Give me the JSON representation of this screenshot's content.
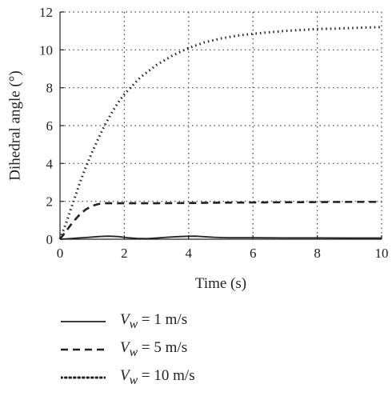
{
  "chart_data": {
    "type": "line",
    "xlabel": "Time (s)",
    "ylabel": "Dihedral angle (°)",
    "xlim": [
      0,
      10
    ],
    "ylim": [
      0,
      12
    ],
    "xticks": [
      0,
      2,
      4,
      6,
      8,
      10
    ],
    "yticks": [
      0,
      2,
      4,
      6,
      8,
      10,
      12
    ],
    "grid": true,
    "legend_position": "bottom",
    "series": [
      {
        "name": "V_w = 1 m/s",
        "label_var": "V",
        "label_sub": "w",
        "label_rest": " = 1 m/s",
        "style": "solid",
        "x": [
          0,
          0.3,
          0.6,
          0.9,
          1.2,
          1.5,
          1.8,
          2.1,
          2.4,
          2.7,
          3.0,
          3.3,
          3.6,
          3.9,
          4.2,
          4.5,
          4.8,
          5.2,
          6,
          7,
          8,
          9,
          10
        ],
        "y": [
          0,
          0.03,
          0.07,
          0.1,
          0.14,
          0.16,
          0.14,
          0.08,
          0.04,
          0.03,
          0.06,
          0.1,
          0.13,
          0.15,
          0.16,
          0.13,
          0.1,
          0.08,
          0.08,
          0.07,
          0.07,
          0.06,
          0.06
        ]
      },
      {
        "name": "V_w = 5 m/s",
        "label_var": "V",
        "label_sub": "w",
        "label_rest": " = 5 m/s",
        "style": "dashed",
        "x": [
          0,
          0.2,
          0.4,
          0.6,
          0.8,
          1.0,
          1.2,
          1.4,
          1.6,
          2,
          3,
          4,
          5,
          6,
          7,
          8,
          9,
          10
        ],
        "y": [
          0,
          0.45,
          0.9,
          1.28,
          1.57,
          1.76,
          1.86,
          1.9,
          1.9,
          1.9,
          1.9,
          1.91,
          1.93,
          1.94,
          1.95,
          1.96,
          1.97,
          1.97
        ]
      },
      {
        "name": "V_w = 10 m/s",
        "label_var": "V",
        "label_sub": "w",
        "label_rest": " = 10 m/s",
        "style": "dotted",
        "x": [
          0,
          0.2,
          0.4,
          0.6,
          0.8,
          1.0,
          1.2,
          1.4,
          1.6,
          1.8,
          2.0,
          2.5,
          3.0,
          3.5,
          4.0,
          4.5,
          5.0,
          5.5,
          6.0,
          6.5,
          7.0,
          7.5,
          8.0,
          8.5,
          9.0,
          9.5,
          10.0
        ],
        "y": [
          0,
          0.9,
          1.9,
          2.9,
          3.8,
          4.6,
          5.35,
          6.05,
          6.65,
          7.2,
          7.65,
          8.55,
          9.2,
          9.7,
          10.1,
          10.4,
          10.6,
          10.75,
          10.85,
          10.93,
          11.0,
          11.05,
          11.1,
          11.12,
          11.15,
          11.18,
          11.2
        ]
      }
    ]
  }
}
